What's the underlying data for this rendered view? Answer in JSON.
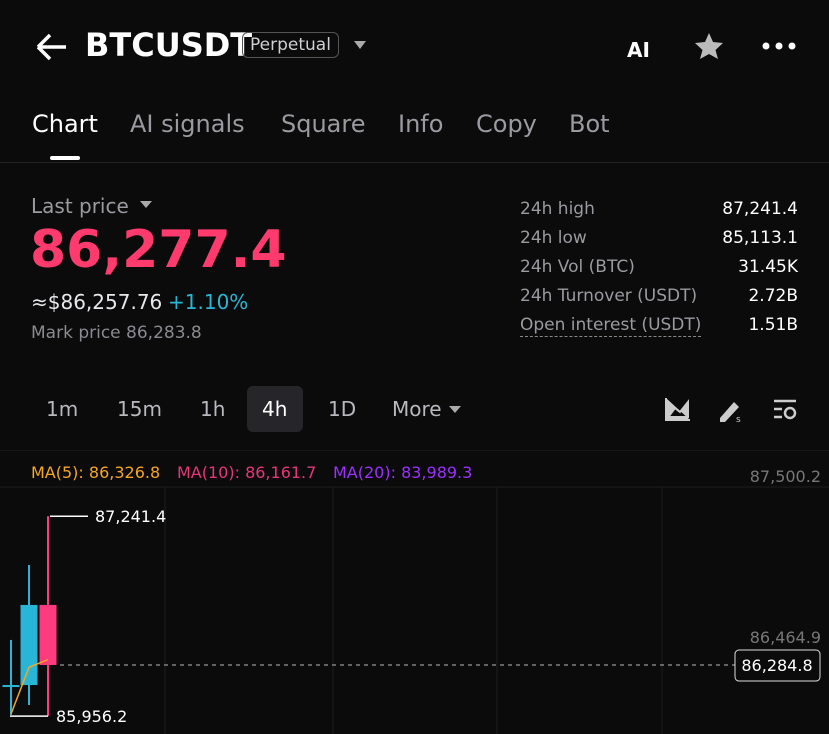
{
  "header": {
    "title": "BTCUSDT",
    "badge": "Perpetual",
    "ai_icon": "AI"
  },
  "tabs": {
    "items": [
      "Chart",
      "AI signals",
      "Square",
      "Info",
      "Copy",
      "Bot"
    ],
    "active": 0
  },
  "price": {
    "label": "Last price",
    "last": "86,277.4",
    "approx": "≈$86,257.76",
    "change": "+1.10%",
    "mark": "Mark price 86,283.8"
  },
  "stats": {
    "rows": [
      [
        "24h high",
        "87,241.4"
      ],
      [
        "24h low",
        "85,113.1"
      ],
      [
        "24h Vol (BTC)",
        "31.45K"
      ],
      [
        "24h Turnover (USDT)",
        "2.72B"
      ],
      [
        "Open interest (USDT)",
        "1.51B"
      ]
    ]
  },
  "intervals": {
    "items": [
      "1m",
      "15m",
      "1h",
      "4h",
      "1D",
      "More"
    ],
    "active": 3
  },
  "chart": {
    "type": "candlestick",
    "ma_labels": [
      {
        "text": "MA(5): 86,326.8",
        "color": "#f5a623"
      },
      {
        "text": "MA(10): 86,161.7",
        "color": "#e8357a"
      },
      {
        "text": "MA(20): 83,989.3",
        "color": "#9b30ff"
      }
    ],
    "yticks": [
      {
        "value": 87500.2,
        "label": "87,500.2"
      },
      {
        "value": 86464.9,
        "label": "86,464.9"
      }
    ],
    "current": {
      "value": 86284.8,
      "label": "86,284.8"
    },
    "high_mark": {
      "value": 87241.4,
      "label": "87,241.4"
    },
    "low_mark": {
      "value": 85956.2,
      "label": "85,956.2"
    },
    "candles": [
      {
        "open": 86156,
        "high": 86446,
        "low": 85964,
        "close": 86156,
        "color": "#29b6d6"
      },
      {
        "open": 86156,
        "high": 86928,
        "low": 86028,
        "close": 86671,
        "color": "#29b6d6"
      },
      {
        "open": 86671,
        "high": 87241.4,
        "low": 85956.2,
        "close": 86284.8,
        "color": "#ff3b7f"
      }
    ],
    "ma5": {
      "values": [
        85970,
        86270,
        86320
      ],
      "color": "#f5a623"
    }
  }
}
